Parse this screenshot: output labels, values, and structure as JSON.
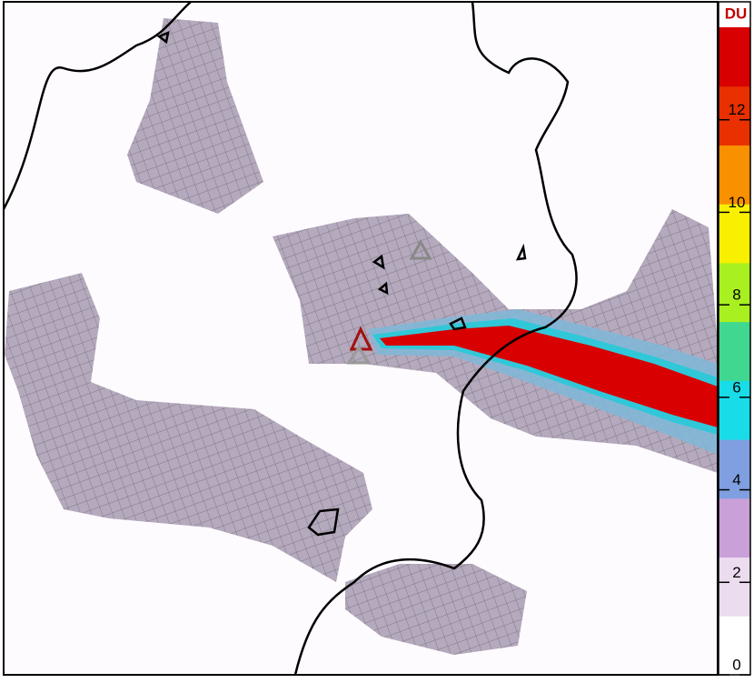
{
  "colorbar": {
    "label": "DU",
    "lim": [
      0,
      14
    ],
    "ticks": [
      0,
      2,
      4,
      6,
      8,
      10,
      12
    ],
    "colors": [
      "#ffffff",
      "#ecdcf0",
      "#c9a0d8",
      "#7f9fe0",
      "#18dce8",
      "#40d890",
      "#a8f020",
      "#f8f000",
      "#f89000",
      "#e83000",
      "#d80000"
    ]
  }
}
